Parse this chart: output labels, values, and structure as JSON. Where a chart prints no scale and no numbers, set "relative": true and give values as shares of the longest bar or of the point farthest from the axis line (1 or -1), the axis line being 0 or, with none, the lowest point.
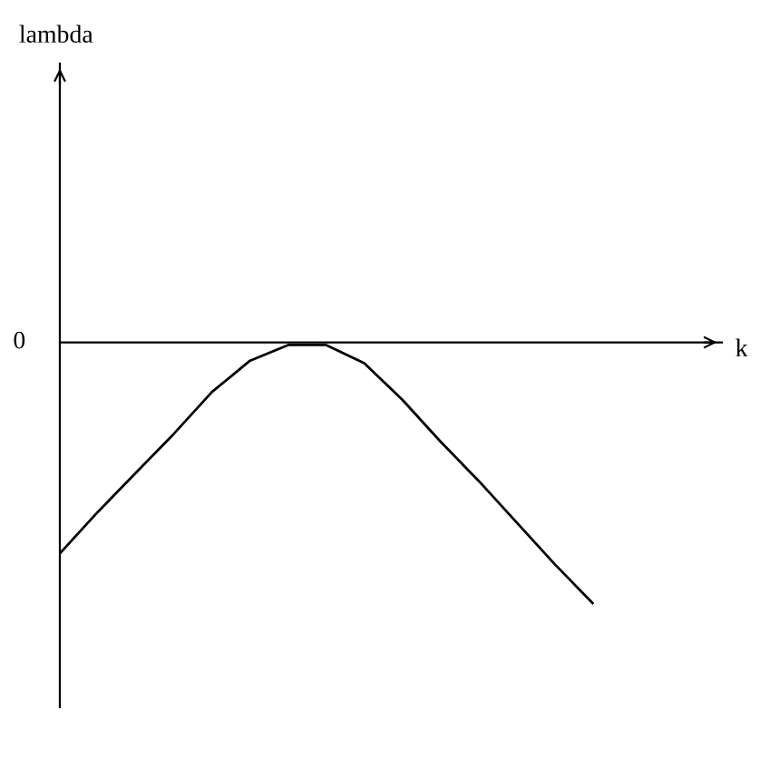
{
  "chart_data": {
    "type": "line",
    "relative": true,
    "xlabel": "k",
    "annotations": [
      "lambda",
      "0"
    ],
    "categories": [
      null,
      null,
      null,
      null,
      null,
      null,
      null,
      null,
      null,
      null,
      null,
      null,
      null,
      null,
      null
    ],
    "series": [
      {
        "color": "#000000",
        "values": [
          -0.81,
          -0.65,
          -0.5,
          -0.35,
          -0.19,
          -0.07,
          -0.01,
          -0.01,
          -0.08,
          -0.22,
          -0.38,
          -0.53,
          -0.69,
          -0.85,
          -1
        ]
      }
    ],
    "marker": "none",
    "line_style": "solid"
  }
}
